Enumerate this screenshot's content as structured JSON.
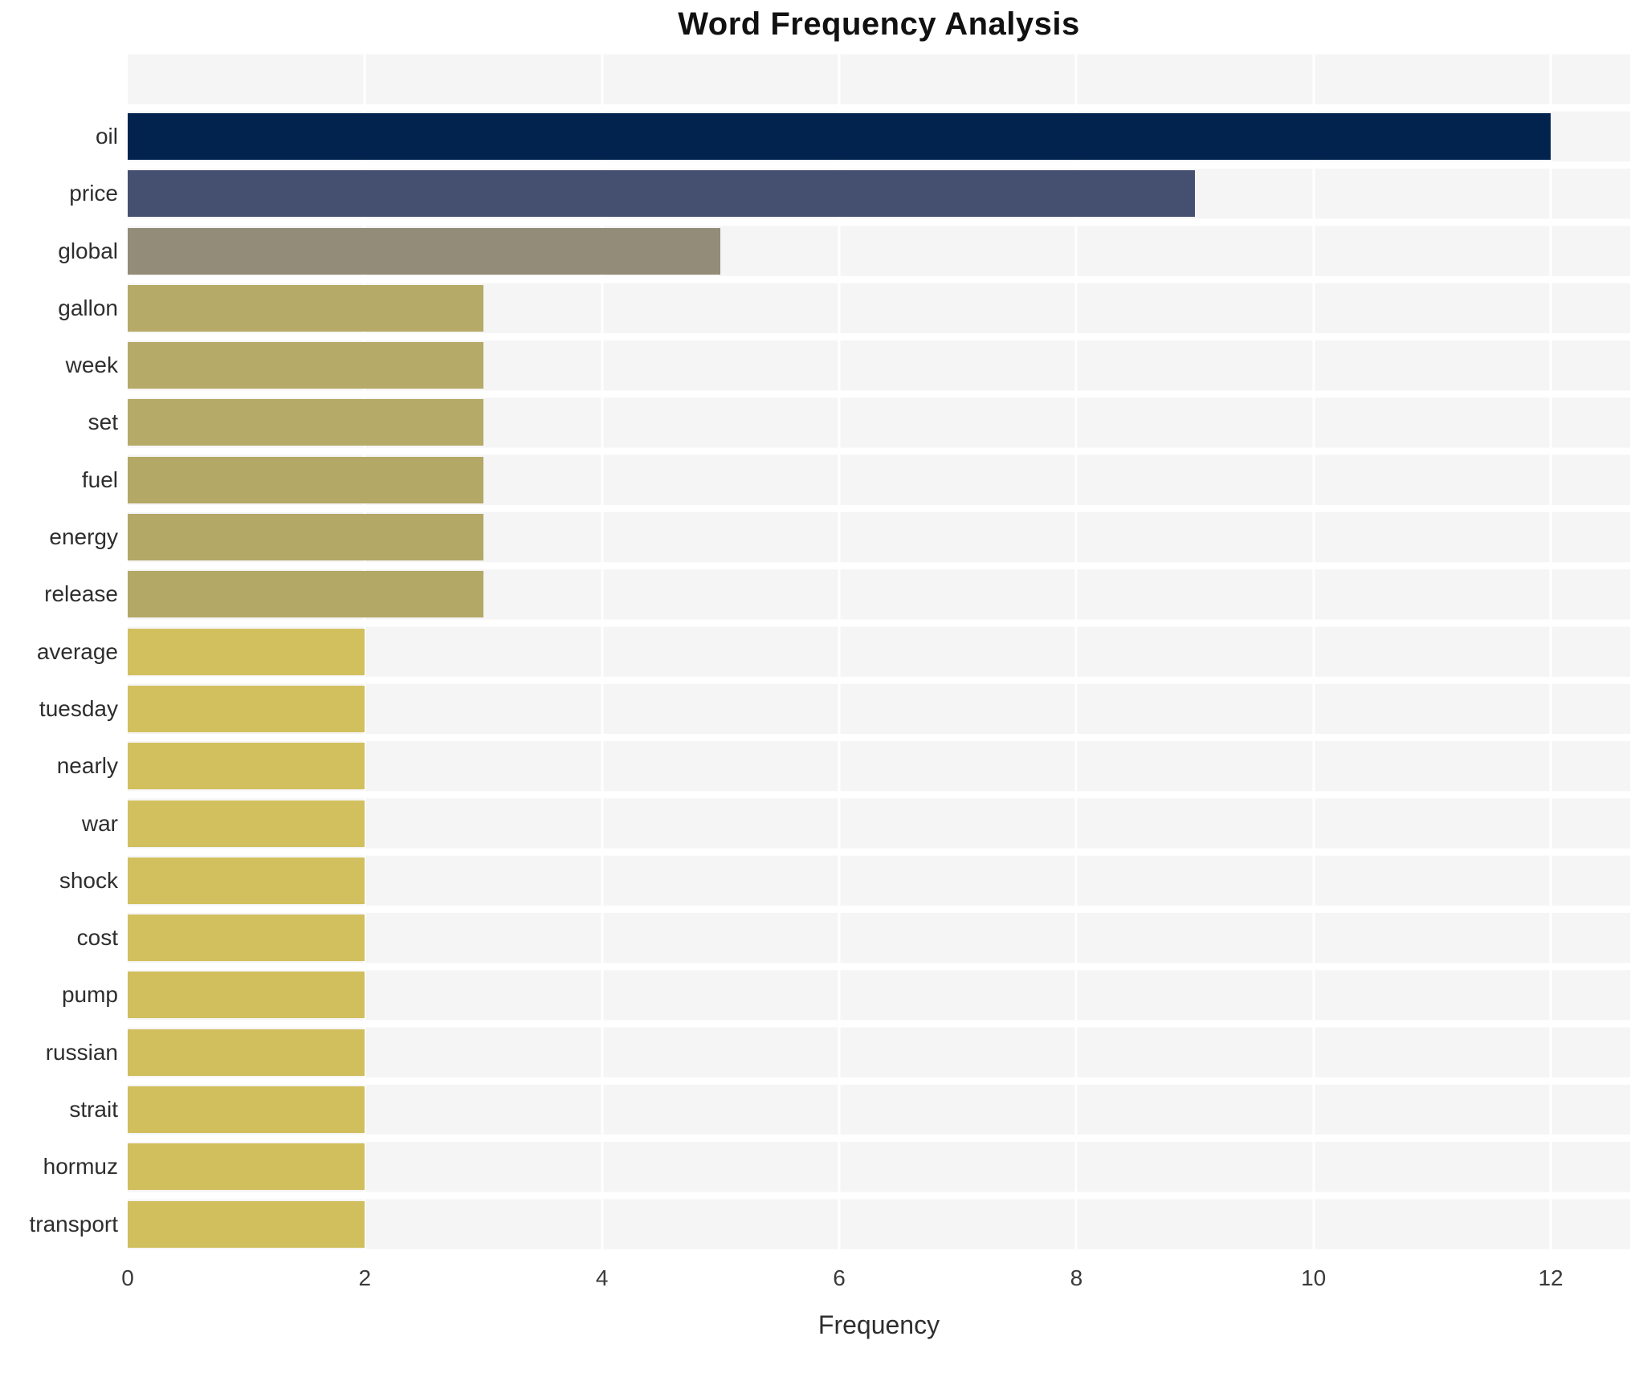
{
  "title": "Word Frequency Analysis",
  "chart_data": {
    "type": "bar",
    "orientation": "horizontal",
    "title": "Word Frequency Analysis",
    "xlabel": "Frequency",
    "ylabel": "",
    "categories": [
      "oil",
      "price",
      "global",
      "gallon",
      "week",
      "set",
      "fuel",
      "energy",
      "release",
      "average",
      "tuesday",
      "nearly",
      "war",
      "shock",
      "cost",
      "pump",
      "russian",
      "strait",
      "hormuz",
      "transport"
    ],
    "values": [
      12,
      9,
      5,
      3,
      3,
      3,
      3,
      3,
      3,
      2,
      2,
      2,
      2,
      2,
      2,
      2,
      2,
      2,
      2,
      2
    ],
    "bar_colors": [
      "#01234e",
      "#455070",
      "#928c78",
      "#b5aa67",
      "#b5aa67",
      "#b5aa67",
      "#b3a866",
      "#b3a866",
      "#b3a866",
      "#d2c05e",
      "#d2c05e",
      "#d2c05e",
      "#d2c05e",
      "#d2c05e",
      "#d2c05e",
      "#d0bf5c",
      "#d0bf5c",
      "#d0bf5c",
      "#d0bf5c",
      "#d0bf5c"
    ],
    "xlim": [
      0,
      12.67
    ],
    "xticks": [
      0,
      2,
      4,
      6,
      8,
      10,
      12
    ],
    "grid": true,
    "legend": "none",
    "plot_background": "#f5f5f6",
    "gridline_color": "#ffffff"
  }
}
